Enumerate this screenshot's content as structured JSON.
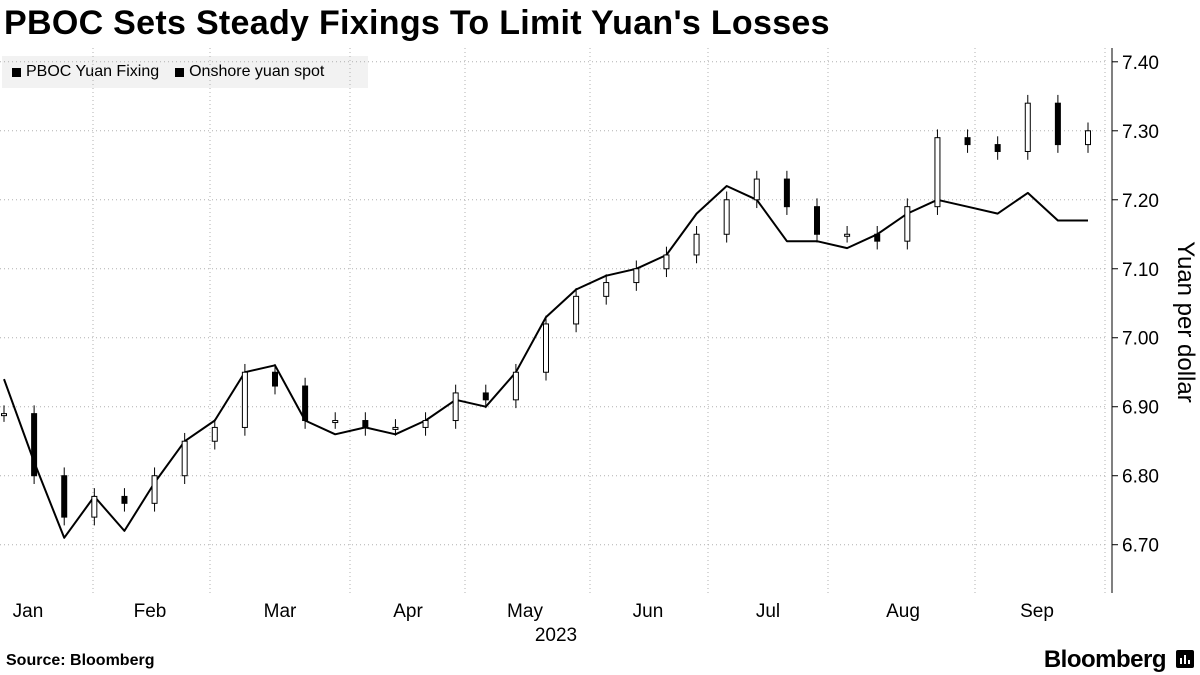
{
  "title": "PBOC Sets Steady Fixings To Limit Yuan's Losses",
  "legend": [
    {
      "label": "PBOC Yuan Fixing",
      "color": "#000000",
      "icon": "square"
    },
    {
      "label": "Onshore yuan spot",
      "color": "#000000",
      "icon": "square"
    }
  ],
  "source": "Source: Bloomberg",
  "brand": "Bloomberg",
  "chart_data": {
    "type": "line",
    "title": "PBOC Sets Steady Fixings To Limit Yuan's Losses",
    "ylabel": "Yuan per dollar",
    "y_axis_side": "right",
    "ylim": [
      6.63,
      7.42
    ],
    "yticks": [
      6.7,
      6.8,
      6.9,
      7.0,
      7.1,
      7.2,
      7.3,
      7.4
    ],
    "ytick_labels": [
      "6.70",
      "6.80",
      "6.90",
      "7.00",
      "7.10",
      "7.20",
      "7.30",
      "7.40"
    ],
    "x_labels": [
      "Jan",
      "Feb",
      "Mar",
      "Apr",
      "May",
      "Jun",
      "Jul",
      "Aug",
      "Sep"
    ],
    "x_sublabel": "2023",
    "grid": "dotted",
    "legend_position": "top-left",
    "series": [
      {
        "name": "PBOC Yuan Fixing",
        "style": "candlestick",
        "color": "#000000",
        "x": [
          "Jan 2",
          "Jan 9",
          "Jan 16",
          "Jan 23",
          "Jan 30",
          "Feb 6",
          "Feb 13",
          "Feb 20",
          "Feb 27",
          "Mar 6",
          "Mar 13",
          "Mar 20",
          "Mar 27",
          "Apr 3",
          "Apr 10",
          "Apr 17",
          "Apr 24",
          "May 1",
          "May 8",
          "May 15",
          "May 22",
          "May 29",
          "Jun 5",
          "Jun 12",
          "Jun 19",
          "Jun 26",
          "Jul 3",
          "Jul 10",
          "Jul 17",
          "Jul 24",
          "Jul 31",
          "Aug 7",
          "Aug 14",
          "Aug 21",
          "Aug 28",
          "Sep 4",
          "Sep 11"
        ],
        "values": [
          6.89,
          6.8,
          6.74,
          6.77,
          6.76,
          6.8,
          6.85,
          6.87,
          6.95,
          6.93,
          6.88,
          6.88,
          6.87,
          6.87,
          6.88,
          6.92,
          6.91,
          6.95,
          7.02,
          7.06,
          7.08,
          7.1,
          7.12,
          7.15,
          7.2,
          7.23,
          7.19,
          7.15,
          7.15,
          7.14,
          7.19,
          7.29,
          7.28,
          7.27,
          7.34,
          7.28,
          7.3
        ]
      },
      {
        "name": "Onshore yuan spot",
        "style": "line",
        "color": "#000000",
        "x": [
          "Jan 2",
          "Jan 9",
          "Jan 16",
          "Jan 23",
          "Jan 30",
          "Feb 6",
          "Feb 13",
          "Feb 20",
          "Feb 27",
          "Mar 6",
          "Mar 13",
          "Mar 20",
          "Mar 27",
          "Apr 3",
          "Apr 10",
          "Apr 17",
          "Apr 24",
          "May 1",
          "May 8",
          "May 15",
          "May 22",
          "May 29",
          "Jun 5",
          "Jun 12",
          "Jun 19",
          "Jun 26",
          "Jul 3",
          "Jul 10",
          "Jul 17",
          "Jul 24",
          "Jul 31",
          "Aug 7",
          "Aug 14",
          "Aug 21",
          "Aug 28",
          "Sep 4",
          "Sep 11"
        ],
        "values": [
          6.94,
          6.82,
          6.71,
          6.77,
          6.72,
          6.79,
          6.85,
          6.88,
          6.95,
          6.96,
          6.88,
          6.86,
          6.87,
          6.86,
          6.88,
          6.91,
          6.9,
          6.95,
          7.03,
          7.07,
          7.09,
          7.1,
          7.12,
          7.18,
          7.22,
          7.2,
          7.14,
          7.14,
          7.13,
          7.15,
          7.18,
          7.2,
          7.19,
          7.18,
          7.21,
          7.17,
          7.17
        ]
      }
    ]
  }
}
